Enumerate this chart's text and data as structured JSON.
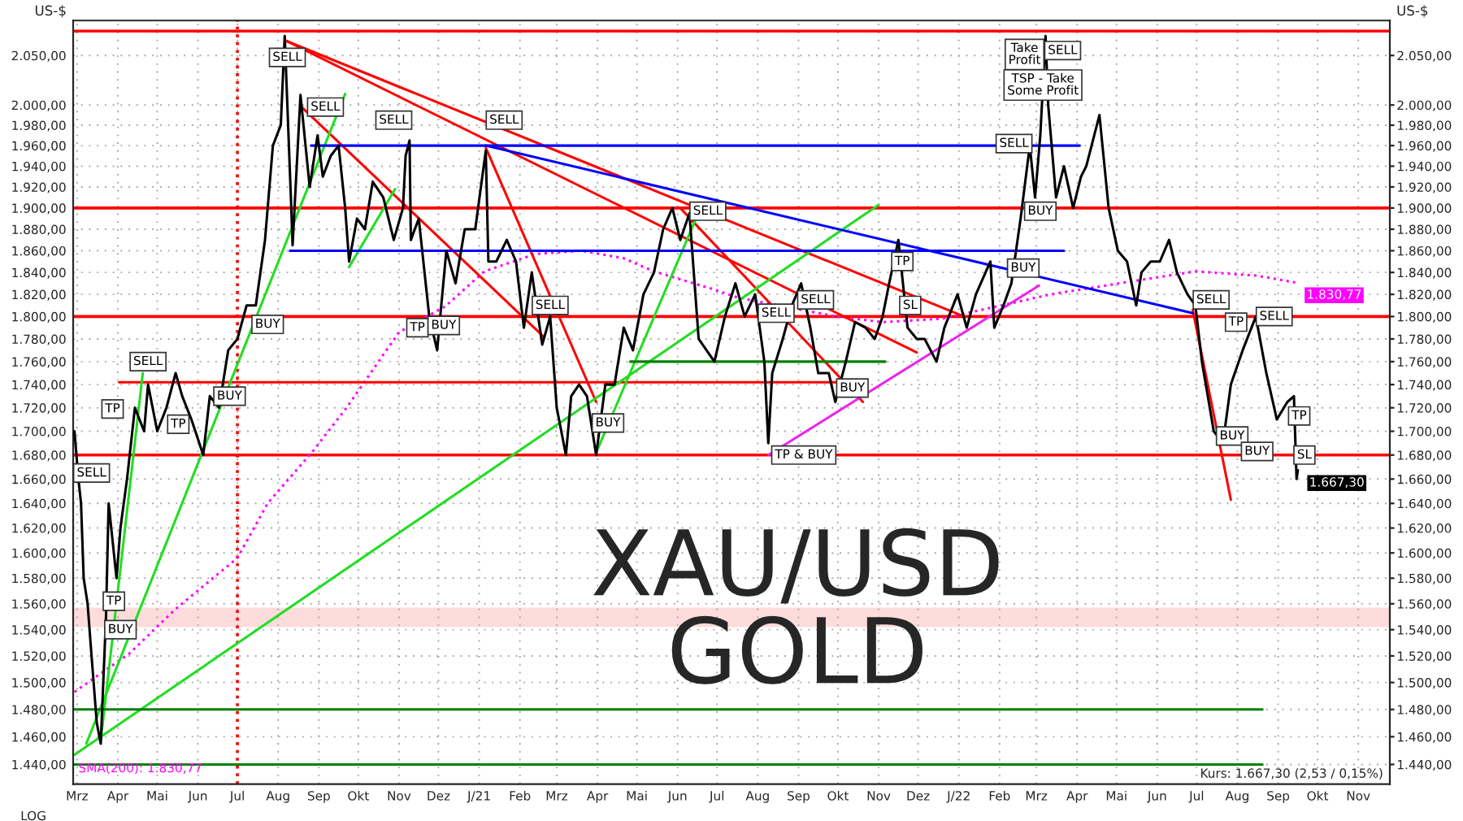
{
  "chart_data": {
    "type": "line",
    "title": "XAU/USD",
    "subtitle": "GOLD",
    "ylabel": "US-$",
    "log": true,
    "grid": true,
    "xlim": [
      "2020-02-27",
      "2022-11-25"
    ],
    "xticks": [
      {
        "value": "2020-03-01",
        "label": "Mrz"
      },
      {
        "value": "2020-04-01",
        "label": "Apr"
      },
      {
        "value": "2020-05-01",
        "label": "Mai"
      },
      {
        "value": "2020-06-01",
        "label": "Jun"
      },
      {
        "value": "2020-07-01",
        "label": "Jul"
      },
      {
        "value": "2020-08-01",
        "label": "Aug"
      },
      {
        "value": "2020-09-01",
        "label": "Sep"
      },
      {
        "value": "2020-10-01",
        "label": "Okt"
      },
      {
        "value": "2020-11-01",
        "label": "Nov"
      },
      {
        "value": "2020-12-01",
        "label": "Dez"
      },
      {
        "value": "2021-01-01",
        "label": "J/21"
      },
      {
        "value": "2021-02-01",
        "label": "Feb"
      },
      {
        "value": "2021-03-01",
        "label": "Mrz"
      },
      {
        "value": "2021-04-01",
        "label": "Apr"
      },
      {
        "value": "2021-05-01",
        "label": "Mai"
      },
      {
        "value": "2021-06-01",
        "label": "Jun"
      },
      {
        "value": "2021-07-01",
        "label": "Jul"
      },
      {
        "value": "2021-08-01",
        "label": "Aug"
      },
      {
        "value": "2021-09-01",
        "label": "Sep"
      },
      {
        "value": "2021-10-01",
        "label": "Okt"
      },
      {
        "value": "2021-11-01",
        "label": "Nov"
      },
      {
        "value": "2021-12-01",
        "label": "Dez"
      },
      {
        "value": "2022-01-01",
        "label": "J/22"
      },
      {
        "value": "2022-02-01",
        "label": "Feb"
      },
      {
        "value": "2022-03-01",
        "label": "Mrz"
      },
      {
        "value": "2022-04-01",
        "label": "Apr"
      },
      {
        "value": "2022-05-01",
        "label": "Mai"
      },
      {
        "value": "2022-06-01",
        "label": "Jun"
      },
      {
        "value": "2022-07-01",
        "label": "Jul"
      },
      {
        "value": "2022-08-01",
        "label": "Aug"
      },
      {
        "value": "2022-09-01",
        "label": "Sep"
      },
      {
        "value": "2022-10-01",
        "label": "Okt"
      },
      {
        "value": "2022-11-01",
        "label": "Nov"
      }
    ],
    "ylim": [
      1426,
      2086
    ],
    "yticks": [
      {
        "value": 1440,
        "label": "1.440,00"
      },
      {
        "value": 1460,
        "label": "1.460,00"
      },
      {
        "value": 1480,
        "label": "1.480,00"
      },
      {
        "value": 1500,
        "label": "1.500,00"
      },
      {
        "value": 1520,
        "label": "1.520,00"
      },
      {
        "value": 1540,
        "label": "1.540,00"
      },
      {
        "value": 1560,
        "label": "1.560,00"
      },
      {
        "value": 1580,
        "label": "1.580,00"
      },
      {
        "value": 1600,
        "label": "1.600,00"
      },
      {
        "value": 1620,
        "label": "1.620,00"
      },
      {
        "value": 1640,
        "label": "1.640,00"
      },
      {
        "value": 1660,
        "label": "1.660,00"
      },
      {
        "value": 1680,
        "label": "1.680,00"
      },
      {
        "value": 1700,
        "label": "1.700,00"
      },
      {
        "value": 1720,
        "label": "1.720,00"
      },
      {
        "value": 1740,
        "label": "1.740,00"
      },
      {
        "value": 1760,
        "label": "1.760,00"
      },
      {
        "value": 1780,
        "label": "1.780,00"
      },
      {
        "value": 1800,
        "label": "1.800,00"
      },
      {
        "value": 1820,
        "label": "1.820,00"
      },
      {
        "value": 1840,
        "label": "1.840,00"
      },
      {
        "value": 1860,
        "label": "1.860,00"
      },
      {
        "value": 1880,
        "label": "1.880,00"
      },
      {
        "value": 1900,
        "label": "1.900,00"
      },
      {
        "value": 1920,
        "label": "1.920,00"
      },
      {
        "value": 1940,
        "label": "1.940,00"
      },
      {
        "value": 1960,
        "label": "1.960,00"
      },
      {
        "value": 1980,
        "label": "1.980,00"
      },
      {
        "value": 2000,
        "label": "2.000,00"
      },
      {
        "value": 2050,
        "label": "2.050,00"
      }
    ],
    "bands": [
      {
        "axis": "y",
        "from": 1542,
        "to": 1557,
        "color": "#ffdcdc"
      }
    ],
    "ref_lines": [
      {
        "axis": "y",
        "value": 2075,
        "color": "#ff0000",
        "line_style": "solid"
      },
      {
        "axis": "y",
        "value": 1900,
        "color": "#ff0000",
        "line_style": "solid"
      },
      {
        "axis": "y",
        "value": 1800,
        "color": "#ff0000",
        "line_style": "solid"
      },
      {
        "axis": "y",
        "value": 1680,
        "color": "#ff0000",
        "line_style": "solid"
      },
      {
        "axis": "x",
        "value": "2020-07-01",
        "color": "#ff0000",
        "line_style": "dotted"
      }
    ],
    "series": [
      {
        "color": "#000000",
        "line_style": "solid",
        "x": [
          "2020-02-28",
          "2020-03-02",
          "2020-03-04",
          "2020-03-06",
          "2020-03-09",
          "2020-03-12",
          "2020-03-16",
          "2020-03-19",
          "2020-03-23",
          "2020-03-25",
          "2020-03-27",
          "2020-03-31",
          "2020-04-03",
          "2020-04-08",
          "2020-04-14",
          "2020-04-21",
          "2020-04-24",
          "2020-05-01",
          "2020-05-08",
          "2020-05-15",
          "2020-05-20",
          "2020-05-27",
          "2020-06-05",
          "2020-06-10",
          "2020-06-17",
          "2020-06-24",
          "2020-07-01",
          "2020-07-08",
          "2020-07-15",
          "2020-07-22",
          "2020-07-28",
          "2020-08-03",
          "2020-08-06",
          "2020-08-11",
          "2020-08-12",
          "2020-08-18",
          "2020-08-25",
          "2020-08-31",
          "2020-09-04",
          "2020-09-10",
          "2020-09-16",
          "2020-09-21",
          "2020-09-24",
          "2020-09-30",
          "2020-10-06",
          "2020-10-12",
          "2020-10-20",
          "2020-10-28",
          "2020-11-04",
          "2020-11-06",
          "2020-11-09",
          "2020-11-10",
          "2020-11-16",
          "2020-11-24",
          "2020-11-30",
          "2020-12-07",
          "2020-12-14",
          "2020-12-21",
          "2020-12-29",
          "2021-01-06",
          "2021-01-08",
          "2021-01-14",
          "2021-01-22",
          "2021-01-29",
          "2021-02-04",
          "2021-02-10",
          "2021-02-18",
          "2021-02-24",
          "2021-03-01",
          "2021-03-08",
          "2021-03-12",
          "2021-03-18",
          "2021-03-24",
          "2021-03-31",
          "2021-04-07",
          "2021-04-14",
          "2021-04-21",
          "2021-04-28",
          "2021-05-06",
          "2021-05-14",
          "2021-05-21",
          "2021-05-28",
          "2021-06-03",
          "2021-06-10",
          "2021-06-17",
          "2021-06-29",
          "2021-07-07",
          "2021-07-15",
          "2021-07-22",
          "2021-07-30",
          "2021-08-06",
          "2021-08-09",
          "2021-08-12",
          "2021-08-20",
          "2021-08-27",
          "2021-09-03",
          "2021-09-10",
          "2021-09-16",
          "2021-09-24",
          "2021-09-29",
          "2021-10-07",
          "2021-10-14",
          "2021-10-22",
          "2021-10-29",
          "2021-11-04",
          "2021-11-09",
          "2021-11-16",
          "2021-11-23",
          "2021-11-30",
          "2021-12-06",
          "2021-12-15",
          "2021-12-21",
          "2021-12-31",
          "2022-01-07",
          "2022-01-14",
          "2022-01-25",
          "2022-01-28",
          "2022-02-04",
          "2022-02-10",
          "2022-02-17",
          "2022-02-24",
          "2022-02-28",
          "2022-03-04",
          "2022-03-08",
          "2022-03-10",
          "2022-03-16",
          "2022-03-22",
          "2022-03-29",
          "2022-04-04",
          "2022-04-08",
          "2022-04-18",
          "2022-04-25",
          "2022-05-02",
          "2022-05-09",
          "2022-05-16",
          "2022-05-20",
          "2022-05-27",
          "2022-06-03",
          "2022-06-10",
          "2022-06-16",
          "2022-06-24",
          "2022-06-30",
          "2022-07-05",
          "2022-07-14",
          "2022-07-21",
          "2022-07-27",
          "2022-08-05",
          "2022-08-15",
          "2022-08-23",
          "2022-08-31",
          "2022-09-08",
          "2022-09-13",
          "2022-09-15",
          "2022-09-16"
        ],
        "values": [
          1700,
          1660,
          1640,
          1580,
          1560,
          1520,
          1470,
          1455,
          1550,
          1640,
          1620,
          1580,
          1620,
          1660,
          1720,
          1700,
          1740,
          1700,
          1720,
          1750,
          1730,
          1710,
          1680,
          1730,
          1720,
          1770,
          1780,
          1810,
          1810,
          1870,
          1960,
          1980,
          2070,
          1900,
          1865,
          2010,
          1920,
          1970,
          1930,
          1950,
          1960,
          1900,
          1850,
          1890,
          1880,
          1925,
          1910,
          1870,
          1900,
          1950,
          1965,
          1870,
          1890,
          1800,
          1770,
          1860,
          1830,
          1880,
          1880,
          1955,
          1850,
          1850,
          1870,
          1850,
          1790,
          1840,
          1775,
          1800,
          1720,
          1680,
          1730,
          1740,
          1730,
          1680,
          1740,
          1740,
          1790,
          1770,
          1820,
          1840,
          1880,
          1900,
          1870,
          1895,
          1780,
          1760,
          1800,
          1830,
          1800,
          1820,
          1760,
          1690,
          1750,
          1780,
          1810,
          1830,
          1790,
          1750,
          1750,
          1725,
          1760,
          1795,
          1790,
          1780,
          1800,
          1830,
          1870,
          1790,
          1780,
          1780,
          1760,
          1790,
          1820,
          1790,
          1820,
          1850,
          1790,
          1810,
          1830,
          1890,
          1960,
          1910,
          1970,
          2070,
          2000,
          1910,
          1940,
          1900,
          1930,
          1940,
          1990,
          1900,
          1860,
          1850,
          1810,
          1840,
          1850,
          1850,
          1870,
          1840,
          1820,
          1810,
          1760,
          1700,
          1690,
          1740,
          1770,
          1800,
          1750,
          1710,
          1725,
          1730,
          1660,
          1667.3
        ],
        "value_labels": [
          null,
          null,
          null,
          null,
          null,
          null,
          null,
          null,
          null,
          null,
          null,
          null,
          null,
          null,
          null,
          null,
          null,
          null,
          null,
          null,
          null,
          null,
          null,
          null,
          null,
          null,
          null,
          null,
          null,
          null,
          null,
          null,
          null,
          null,
          null,
          null,
          null,
          null,
          null,
          null,
          null,
          null,
          null,
          null,
          null,
          null,
          null,
          null,
          null,
          null,
          null,
          null,
          null,
          null,
          null,
          null,
          null,
          null,
          null,
          null,
          null,
          null,
          null,
          null,
          null,
          null,
          null,
          null,
          null,
          null,
          null,
          null,
          null,
          null,
          null,
          null,
          null,
          null,
          null,
          null,
          null,
          null,
          null,
          null,
          null,
          null,
          null,
          null,
          null,
          null,
          null,
          null,
          null,
          null,
          null,
          null,
          null,
          null,
          null,
          null,
          null,
          null,
          null,
          null,
          null,
          null,
          null,
          null,
          null,
          null,
          null,
          null,
          null,
          null,
          null,
          null,
          null,
          null,
          null,
          null,
          null,
          null,
          null,
          null,
          null,
          null,
          null,
          null,
          null,
          null,
          null,
          null,
          null,
          null,
          null,
          null,
          null,
          null,
          null,
          null,
          null,
          null,
          null,
          null,
          null,
          null,
          null,
          null,
          null,
          null,
          null,
          null,
          null,
          "1.667,30"
        ]
      },
      {
        "name": "SMA(200): 1.830,77",
        "color": "#ff00ff",
        "line_style": "dotted",
        "x": [
          "2020-02-28",
          "2020-04-10",
          "2020-05-15",
          "2020-06-10",
          "2020-07-01",
          "2020-07-24",
          "2020-08-28",
          "2020-09-22",
          "2020-11-01",
          "2020-12-06",
          "2021-01-05",
          "2021-02-13",
          "2021-03-20",
          "2021-04-21",
          "2021-05-14",
          "2021-06-27",
          "2021-07-17",
          "2021-09-30",
          "2021-11-04",
          "2021-12-19",
          "2022-03-12",
          "2022-04-28",
          "2022-06-30",
          "2022-08-16",
          "2022-09-14"
        ],
        "values": [
          1493,
          1522,
          1556,
          1578,
          1596,
          1640,
          1684,
          1720,
          1786,
          1809,
          1841,
          1857,
          1860,
          1853,
          1841,
          1825,
          1817,
          1800,
          1795,
          1798,
          1820,
          1829,
          1841,
          1837,
          1830.77
        ],
        "value_labels": [
          null,
          null,
          null,
          null,
          null,
          null,
          null,
          null,
          null,
          null,
          null,
          null,
          null,
          null,
          null,
          null,
          null,
          null,
          null,
          null,
          null,
          null,
          null,
          null,
          "1.830,77"
        ]
      },
      {
        "color": "#ff0000",
        "line_style": "solid",
        "x": [
          "2020-08-07",
          "2022-01-05"
        ],
        "values": [
          2065,
          1800
        ]
      },
      {
        "color": "#ff0000",
        "line_style": "solid",
        "x": [
          "2020-08-07",
          "2021-11-30"
        ],
        "values": [
          2065,
          1768
        ]
      },
      {
        "color": "#ff0000",
        "line_style": "solid",
        "x": [
          "2020-08-18",
          "2021-02-19"
        ],
        "values": [
          1999,
          1782
        ]
      },
      {
        "color": "#ff0000",
        "line_style": "solid",
        "x": [
          "2021-01-06",
          "2021-03-31"
        ],
        "values": [
          1958,
          1725
        ]
      },
      {
        "color": "#ff0000",
        "line_style": "solid",
        "x": [
          "2021-06-03",
          "2021-10-20"
        ],
        "values": [
          1900,
          1725
        ]
      },
      {
        "color": "#ff0000",
        "line_style": "solid",
        "x": [
          "2022-06-28",
          "2022-07-27"
        ],
        "values": [
          1806,
          1643
        ]
      },
      {
        "color": "#ff0000",
        "line_style": "solid",
        "x": [
          "2020-04-02",
          "2021-09-30"
        ],
        "values": [
          1742,
          1742
        ]
      },
      {
        "color": "#22dd22",
        "line_style": "solid",
        "x": [
          "2020-02-28",
          "2021-11-01"
        ],
        "values": [
          1447,
          1903
        ]
      },
      {
        "color": "#22dd22",
        "line_style": "solid",
        "x": [
          "2020-03-08",
          "2020-09-21"
        ],
        "values": [
          1455,
          2011
        ]
      },
      {
        "color": "#22dd22",
        "line_style": "solid",
        "x": [
          "2020-03-19",
          "2020-04-20"
        ],
        "values": [
          1457,
          1750
        ]
      },
      {
        "color": "#22dd22",
        "line_style": "solid",
        "x": [
          "2020-09-24",
          "2020-10-29"
        ],
        "values": [
          1845,
          1918
        ]
      },
      {
        "color": "#22dd22",
        "line_style": "solid",
        "x": [
          "2021-03-31",
          "2021-06-15"
        ],
        "values": [
          1682,
          1890
        ]
      },
      {
        "color": "#008000",
        "line_style": "solid",
        "x": [
          "2021-04-26",
          "2021-11-06"
        ],
        "values": [
          1760,
          1760
        ]
      },
      {
        "color": "#008000",
        "line_style": "solid",
        "x": [
          "2020-02-27",
          "2022-08-20"
        ],
        "values": [
          1480,
          1480
        ]
      },
      {
        "color": "#008000",
        "line_style": "solid",
        "x": [
          "2020-02-27",
          "2022-08-20"
        ],
        "values": [
          1440,
          1440
        ]
      },
      {
        "color": "#ee22ee",
        "line_style": "solid",
        "x": [
          "2021-08-09",
          "2022-03-03"
        ],
        "values": [
          1680,
          1828
        ]
      },
      {
        "color": "#0000ff",
        "line_style": "solid",
        "x": [
          "2021-01-06",
          "2022-06-28"
        ],
        "values": [
          1960,
          1803
        ]
      },
      {
        "color": "#0000ff",
        "line_style": "solid",
        "x": [
          "2020-08-26",
          "2022-04-03"
        ],
        "values": [
          1960,
          1960
        ]
      },
      {
        "color": "#0000ff",
        "line_style": "solid",
        "x": [
          "2020-08-10",
          "2022-03-22"
        ],
        "values": [
          1860,
          1860
        ]
      }
    ],
    "annotations": [
      "LOG",
      "Kurs: 1.667,30 (2,53 / 0,15%)",
      {
        "text": "SELL",
        "x": "2020-08-08",
        "y": 2048
      },
      {
        "text": "SELL",
        "x": "2020-09-06",
        "y": 1998
      },
      {
        "text": "SELL",
        "x": "2020-10-28",
        "y": 1985
      },
      {
        "text": "SELL",
        "x": "2021-01-20",
        "y": 1985
      },
      {
        "text": "SELL",
        "x": "2021-06-24",
        "y": 1897
      },
      {
        "text": "SELL",
        "x": "2021-02-24",
        "y": 1810
      },
      {
        "text": "BUY",
        "x": "2020-07-24",
        "y": 1793
      },
      {
        "text": "TP",
        "x": "2020-11-15",
        "y": 1790
      },
      {
        "text": "BUY",
        "x": "2020-12-05",
        "y": 1792
      },
      {
        "text": "BUY",
        "x": "2020-06-25",
        "y": 1730
      },
      {
        "text": "TP",
        "x": "2020-03-28",
        "y": 1719
      },
      {
        "text": "SELL",
        "x": "2020-04-24",
        "y": 1760
      },
      {
        "text": "TP",
        "x": "2020-05-17",
        "y": 1706
      },
      {
        "text": "SELL",
        "x": "2020-03-12",
        "y": 1665
      },
      {
        "text": "TP",
        "x": "2020-03-29",
        "y": 1562
      },
      {
        "text": "BUY",
        "x": "2020-04-03",
        "y": 1540
      },
      {
        "text": "BUY",
        "x": "2021-04-09",
        "y": 1707
      },
      {
        "text": "Take\nProfit",
        "x": "2022-02-20",
        "y": 2051
      },
      {
        "text": "SELL",
        "x": "2022-03-21",
        "y": 2055
      },
      {
        "text": "TSP - Take\nSome Profit",
        "x": "2022-03-06",
        "y": 2020
      },
      {
        "text": "SELL",
        "x": "2022-02-12",
        "y": 1962
      },
      {
        "text": "BUY",
        "x": "2022-03-04",
        "y": 1897
      },
      {
        "text": "BUY",
        "x": "2022-02-19",
        "y": 1844
      },
      {
        "text": "TP",
        "x": "2021-11-19",
        "y": 1850
      },
      {
        "text": "SL",
        "x": "2021-11-25",
        "y": 1810
      },
      {
        "text": "SELL",
        "x": "2021-08-15",
        "y": 1803
      },
      {
        "text": "SELL",
        "x": "2021-09-14",
        "y": 1815
      },
      {
        "text": "BUY",
        "x": "2021-10-12",
        "y": 1737
      },
      {
        "text": "SELL",
        "x": "2022-07-12",
        "y": 1815
      },
      {
        "text": "TP",
        "x": "2022-07-31",
        "y": 1795
      },
      {
        "text": "SELL",
        "x": "2022-08-29",
        "y": 1800
      },
      {
        "text": "TP & BUY",
        "x": "2021-09-05",
        "y": 1680
      },
      {
        "text": "BUY",
        "x": "2022-07-28",
        "y": 1696
      },
      {
        "text": "BUY",
        "x": "2022-08-16",
        "y": 1683
      },
      {
        "text": "TP",
        "x": "2022-09-17",
        "y": 1713
      },
      {
        "text": "SL",
        "x": "2022-09-21",
        "y": 1680
      }
    ]
  }
}
